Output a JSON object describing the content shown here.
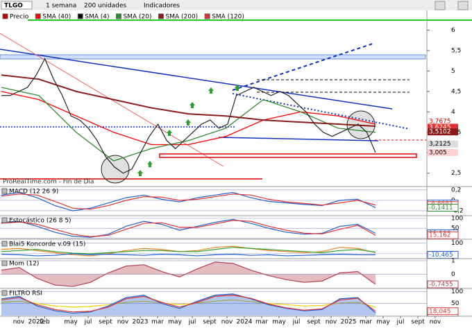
{
  "toolbar": {
    "symbol": "TLGO",
    "period": "1 semana",
    "units": "200 unidades",
    "indicators": "Indicadores"
  },
  "legend": [
    {
      "name": "Precio",
      "color": "#c00000"
    },
    {
      "name": "SMA (40)",
      "color": "#ff0000"
    },
    {
      "name": "SMA (4)",
      "color": "#000000"
    },
    {
      "name": "SMA (20)",
      "color": "#2e8b2e"
    },
    {
      "name": "SMA (200)",
      "color": "#8b1a1a"
    },
    {
      "name": "SMA (120)",
      "color": "#e03030"
    }
  ],
  "watermark": "ProRealTime.com - Fin de Día",
  "price": {
    "ylim": [
      6.5,
      2.19
    ],
    "yticks": [
      6,
      {
        "value": 5.5,
        "label": "5,5"
      },
      5,
      {
        "value": 4.5,
        "label": "4,5"
      },
      4,
      {
        "value": 3.5,
        "label": "3,5"
      },
      3,
      {
        "value": 2.5,
        "label": "2,5"
      }
    ],
    "values": [
      4.4,
      4.4,
      4.5,
      4.6,
      4.9,
      5.3,
      4.8,
      4.4,
      3.9,
      3.8,
      3.6,
      3.3,
      2.9,
      2.65,
      2.5,
      2.6,
      3.0,
      3.4,
      3.7,
      3.3,
      3.1,
      3.3,
      3.5,
      3.7,
      3.8,
      3.6,
      3.7,
      4.4,
      4.5,
      4.6,
      4.5,
      4.4,
      4.5,
      4.4,
      4.2,
      4.0,
      3.7,
      3.5,
      3.4,
      3.5,
      3.6,
      3.7,
      3.5,
      3.005
    ],
    "color": "#222222",
    "smas": [
      {
        "color": "#ff0000",
        "values": [
          4.5,
          4.3,
          3.9,
          3.5,
          3.2,
          3.2,
          3.4,
          3.8,
          4.0,
          3.9,
          3.7
        ]
      },
      {
        "color": "#2e8b2e",
        "values": [
          4.6,
          4.4,
          3.5,
          2.8,
          3.1,
          3.3,
          3.6,
          4.3,
          4.0,
          3.6,
          3.5
        ]
      },
      {
        "color": "#8b1a1a",
        "values": [
          4.9,
          4.8,
          4.5,
          4.3,
          4.1,
          3.95,
          3.9,
          3.8,
          3.75,
          3.7,
          3.65
        ]
      }
    ],
    "value_labels": [
      {
        "value": 3.7675,
        "label": "3,7675",
        "color": "#e00000",
        "bg": "#ffffff"
      },
      {
        "value": 3.6245,
        "label": "3,6245",
        "color": "#ffffff",
        "bg": "#e03030"
      },
      {
        "value": 3.5102,
        "label": "3,5102",
        "color": "#ffffff",
        "bg": "#8b1a1a"
      },
      {
        "value": 3.2125,
        "label": "3,2125",
        "color": "#000000",
        "bg": "#dddddd"
      },
      {
        "value": 3.005,
        "label": "3,005",
        "color": "#000000",
        "bg": "#ffd0d0"
      }
    ]
  },
  "panels": [
    {
      "title": "MACD (12 26 9)",
      "lim": [
        0.25,
        -0.28
      ],
      "ticks": [
        {
          "value": 0.2,
          "label": "0,2"
        },
        0,
        {
          "value": -0.2,
          "label": "-0,2"
        }
      ],
      "series": [
        {
          "color": "#1f5fd0",
          "values": [
            0.1,
            0.15,
            0.05,
            -0.1,
            -0.2,
            -0.15,
            -0.05,
            0.05,
            0.1,
            0.02,
            -0.03,
            0.05,
            0.1,
            0.15,
            0.05,
            -0.02,
            -0.05,
            -0.08,
            -0.1,
            0.0,
            0.02,
            -0.14
          ]
        },
        {
          "color": "#e03030",
          "values": [
            0.08,
            0.12,
            0.1,
            -0.02,
            -0.15,
            -0.17,
            -0.1,
            0.0,
            0.07,
            0.06,
            0.0,
            0.02,
            0.07,
            0.12,
            0.1,
            0.02,
            -0.03,
            -0.06,
            -0.09,
            -0.05,
            0.0,
            -0.09
          ]
        }
      ],
      "labels": [
        {
          "value": -0.0603,
          "label": "-0,0603",
          "color": "#1f5fd0"
        },
        {
          "value": -0.0904,
          "label": "-0,0904",
          "color": "#e03030"
        },
        {
          "value": -0.1411,
          "label": "-0,1411",
          "color": "#2e8b2e"
        }
      ]
    },
    {
      "title": "Estocástico (26 8 5)",
      "lim": [
        110,
        -5
      ],
      "ticks": [
        100,
        50,
        0
      ],
      "series": [
        {
          "color": "#1f5fd0",
          "values": [
            80,
            85,
            60,
            30,
            10,
            5,
            20,
            60,
            85,
            70,
            40,
            60,
            80,
            95,
            75,
            50,
            30,
            20,
            25,
            60,
            70,
            25
          ]
        },
        {
          "color": "#e03030",
          "values": [
            75,
            82,
            70,
            45,
            20,
            8,
            15,
            45,
            75,
            78,
            55,
            55,
            72,
            90,
            85,
            60,
            40,
            25,
            22,
            45,
            65,
            15
          ]
        }
      ],
      "labels": [
        {
          "value": 25.108,
          "label": "25,108",
          "color": "#1f5fd0"
        },
        {
          "value": 15.162,
          "label": "15,162",
          "color": "#e03030"
        }
      ]
    },
    {
      "title": "Blai5 Koncorde v.09 (15)",
      "lim": [
        130,
        -40
      ],
      "ticks": [
        100,
        0
      ],
      "series": [
        {
          "color": "#f08020",
          "values": [
            40,
            50,
            30,
            10,
            -10,
            -20,
            0,
            30,
            50,
            40,
            20,
            30,
            60,
            70,
            50,
            30,
            20,
            10,
            20,
            60,
            50,
            10
          ]
        },
        {
          "color": "#2e9e2e",
          "values": [
            20,
            30,
            40,
            20,
            5,
            0,
            10,
            20,
            30,
            30,
            20,
            20,
            40,
            60,
            50,
            40,
            30,
            20,
            10,
            30,
            40,
            15
          ]
        },
        {
          "color": "#1f5fd0",
          "values": [
            -5,
            -10,
            -20,
            -15,
            0,
            -10,
            -5,
            -10,
            -15,
            -5,
            -10,
            -20,
            -10,
            -5,
            -15,
            -10,
            -20,
            -15,
            -10,
            -5,
            -10,
            -10.465
          ]
        }
      ],
      "labels": [
        {
          "value": -10.465,
          "label": "-10,465",
          "color": "#1f5fd0"
        }
      ]
    },
    {
      "title": "Mom (12)",
      "lim": [
        1.1,
        -1.0
      ],
      "ticks": [
        1,
        0
      ],
      "series": [
        {
          "color": "#b04050",
          "values": [
            0.3,
            0.5,
            -0.3,
            -0.8,
            -0.9,
            -0.6,
            0.1,
            0.6,
            0.7,
            0.2,
            -0.2,
            0.4,
            0.9,
            0.8,
            0.3,
            -0.1,
            -0.4,
            -0.6,
            -0.5,
            0.1,
            0.2,
            -0.7455
          ],
          "area": true
        }
      ],
      "labels": [
        {
          "value": -0.7455,
          "label": "-0,7455",
          "color": "#b04050"
        }
      ]
    },
    {
      "title": "FILTRO RSI",
      "lim": [
        110,
        0
      ],
      "ticks": [
        100,
        50
      ],
      "series": [
        {
          "color": "#f5d000",
          "values": [
            55,
            60,
            50,
            40,
            35,
            38,
            45,
            55,
            60,
            52,
            46,
            52,
            60,
            65,
            58,
            50,
            45,
            40,
            42,
            52,
            55,
            35
          ]
        },
        {
          "color": "#1f5fd0",
          "values": [
            70,
            80,
            40,
            20,
            10,
            15,
            40,
            75,
            85,
            50,
            30,
            60,
            85,
            90,
            70,
            45,
            30,
            20,
            25,
            70,
            75,
            11.164
          ],
          "area": true
        },
        {
          "color": "#e03030",
          "values": [
            65,
            75,
            45,
            25,
            15,
            18,
            35,
            70,
            80,
            55,
            35,
            55,
            80,
            85,
            72,
            48,
            32,
            22,
            28,
            65,
            72,
            18.045
          ]
        }
      ],
      "labels": [
        {
          "value": 11.164,
          "label": "11,164",
          "color": "#1f5fd0"
        },
        {
          "value": 18.045,
          "label": "18,045",
          "color": "#e03030"
        }
      ]
    }
  ],
  "x_axis": {
    "labels": [
      "nov",
      "2022",
      "feb",
      "may",
      "jul",
      "sept",
      "nov",
      "2023",
      "mar",
      "may",
      "jul",
      "sept",
      "nov",
      "2024",
      "mar",
      "may",
      "jul",
      "sept",
      "nov",
      "2025",
      "mar",
      "may",
      "jul",
      "sept",
      "nov"
    ]
  }
}
